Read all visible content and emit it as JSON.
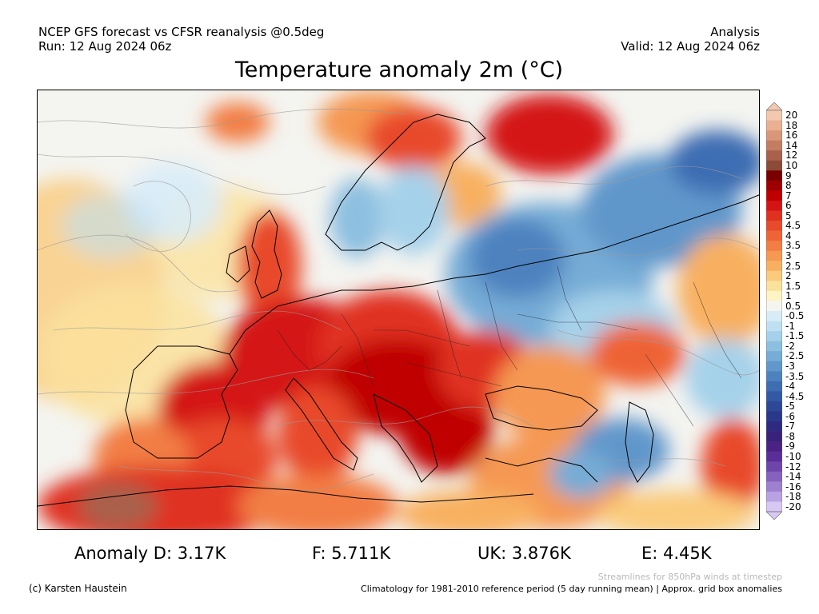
{
  "header": {
    "left_line1": "NCEP GFS forecast vs CFSR reanalysis @0.5deg",
    "left_line2": "Run: 12 Aug 2024 06z",
    "right_line1": "Analysis",
    "right_line2": "Valid: 12 Aug 2024 06z"
  },
  "title": "Temperature anomaly 2m (°C)",
  "colorbar": {
    "labels": [
      "20",
      "18",
      "16",
      "14",
      "12",
      "10",
      "9",
      "8",
      "7",
      "6",
      "5",
      "4.5",
      "4",
      "3.5",
      "3",
      "2.5",
      "2",
      "1.5",
      "1",
      "0.5",
      "-0.5",
      "-1",
      "-1.5",
      "-2",
      "-2.5",
      "-3",
      "-3.5",
      "-4",
      "-4.5",
      "-5",
      "-6",
      "-7",
      "-8",
      "-9",
      "-10",
      "-12",
      "-14",
      "-16",
      "-18",
      "-20"
    ],
    "colors": [
      "#f2c9b0",
      "#e9b094",
      "#d99679",
      "#c47d62",
      "#a9614b",
      "#8a4b38",
      "#7a0000",
      "#9e0000",
      "#c00000",
      "#d41414",
      "#e03020",
      "#e84a2c",
      "#ee6436",
      "#f27e44",
      "#f59852",
      "#f8b060",
      "#facb7c",
      "#fbe29c",
      "#fdf3c4",
      "#f5f5f0",
      "#d8ecf8",
      "#bfe0f2",
      "#a6d1ea",
      "#8dbfe0",
      "#76acd6",
      "#6197cb",
      "#4e82bf",
      "#3e6db2",
      "#3359a4",
      "#2c4896",
      "#2a388a",
      "#2d2a80",
      "#38227a",
      "#4a2284",
      "#5a2e98",
      "#6d45ab",
      "#8462be",
      "#9d80d0",
      "#b9a2e2",
      "#d6c8f2"
    ]
  },
  "stats": {
    "d": "Anomaly D: 3.17K",
    "f": "F: 5.711K",
    "uk": "UK: 3.876K",
    "e": "E: 4.45K"
  },
  "notes": {
    "streamlines": "Streamlines for 850hPa winds at timestep",
    "copyright": "(c) Karsten Haustein",
    "climatology": "Climatology for 1981-2010 reference period (5 day running mean) | Approx. grid box anomalies"
  }
}
